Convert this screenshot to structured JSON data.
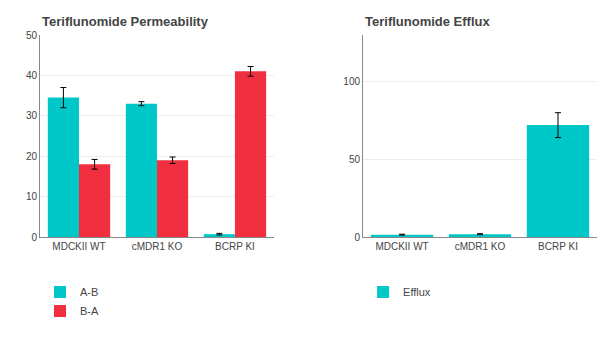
{
  "chart_data": [
    {
      "type": "bar",
      "title": "Teriflunomide Permeability",
      "categories": [
        "MDCKII WT",
        "cMDR1 KO",
        "BCRP KI"
      ],
      "series": [
        {
          "name": "A-B",
          "color": "#00C8C8",
          "values": [
            34.5,
            33.0,
            0.7
          ],
          "errors": [
            2.5,
            0.5,
            0.2
          ]
        },
        {
          "name": "B-A",
          "color": "#F03040",
          "values": [
            18.0,
            19.0,
            41.0
          ],
          "errors": [
            1.2,
            0.8,
            1.2
          ]
        }
      ],
      "ylim": [
        0,
        50
      ],
      "yticks": [
        0,
        10,
        20,
        30,
        40,
        50
      ],
      "grid": true,
      "legend": "bottom"
    },
    {
      "type": "bar",
      "title": "Teriflunomide Efflux",
      "categories": [
        "MDCKII WT",
        "cMDR1 KO",
        "BCRP KI"
      ],
      "series": [
        {
          "name": "Efflux",
          "color": "#00C8C8",
          "values": [
            1.5,
            1.8,
            72.0
          ],
          "errors": [
            0.3,
            0.3,
            8.0
          ]
        }
      ],
      "ylim": [
        0,
        130
      ],
      "yticks": [
        0,
        50,
        100
      ],
      "grid": true,
      "legend": "bottom"
    }
  ]
}
